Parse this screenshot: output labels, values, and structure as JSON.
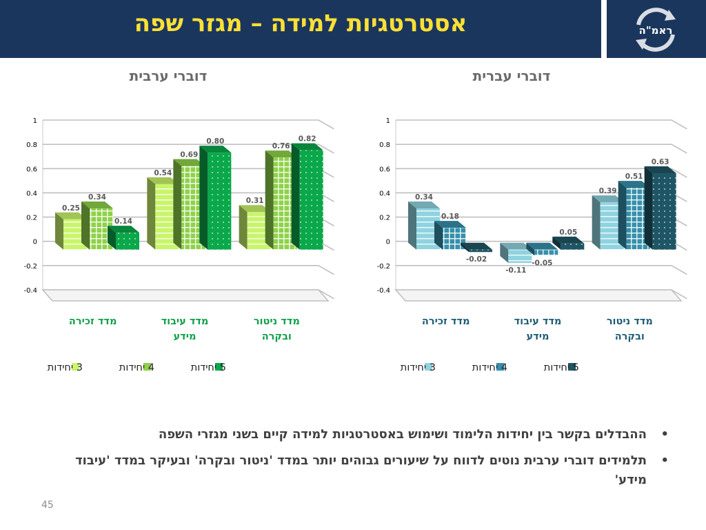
{
  "slide": {
    "title": "אסטרטגיות למידה – מגזר שפה",
    "logo_text": "ראמ\"ה",
    "page_number": "45",
    "bullets": [
      "ההבדלים בקשר בין יחידות הלימוד ושימוש באסטרטגיות למידה קיים בשני מגזרי השפה",
      "תלמידים דוברי ערבית נוטים לדווח על שיעורים גבוהים יותר במדד 'ניטור ובקרה' ובעיקר במדד 'עיבוד מידע'"
    ]
  },
  "colors": {
    "header_bg": "#1b365d",
    "title": "#ffe034",
    "arabic_series": [
      "#c9f56a",
      "#8fd14a",
      "#0aa84a"
    ],
    "arabic_category_text": "#12a04a",
    "hebrew_series": [
      "#8fd3e0",
      "#3690ab",
      "#1f5665"
    ],
    "hebrew_category_text": "#1f5d75"
  },
  "chart_data": [
    {
      "type": "bar",
      "title": "דוברי ערבית",
      "categories": [
        [
          "מדד זכירה"
        ],
        [
          "מדד עיבוד",
          "מידע"
        ],
        [
          "מדד ניטור",
          "ובקרה"
        ]
      ],
      "series": [
        {
          "name": "3 יחידות",
          "values": [
            0.25,
            0.54,
            0.31
          ]
        },
        {
          "name": "4 יחידות",
          "values": [
            0.34,
            0.69,
            0.76
          ]
        },
        {
          "name": "5 יחידות",
          "values": [
            0.14,
            0.8,
            0.82
          ]
        }
      ],
      "data_labels": [
        [
          "0.25",
          "0.54",
          "0.31"
        ],
        [
          "0.34",
          "0.69",
          "0.76"
        ],
        [
          "0.14",
          "0.80",
          "0.82"
        ]
      ],
      "yticks": [
        "1",
        "0.8",
        "0.6",
        "0.4",
        "0.2",
        "0",
        "-0.2",
        "-0.4"
      ],
      "ylim": [
        -0.4,
        1
      ],
      "grid": true,
      "legend_position": "bottom"
    },
    {
      "type": "bar",
      "title": "דוברי עברית",
      "categories": [
        [
          "מדד זכירה"
        ],
        [
          "מדד עיבוד",
          "מידע"
        ],
        [
          "מדד ניטור",
          "ובקרה"
        ]
      ],
      "series": [
        {
          "name": "3 יחידות",
          "values": [
            0.34,
            -0.11,
            0.39
          ]
        },
        {
          "name": "4 יחידות",
          "values": [
            0.18,
            -0.05,
            0.51
          ]
        },
        {
          "name": "5 יחידות",
          "values": [
            -0.02,
            0.05,
            0.63
          ]
        }
      ],
      "data_labels": [
        [
          "0.34",
          "-0.11",
          "0.39"
        ],
        [
          "0.18",
          "-0.05",
          "0.51"
        ],
        [
          "-0.02",
          "0.05",
          "0.63"
        ]
      ],
      "yticks": [
        "1",
        "0.8",
        "0.6",
        "0.4",
        "0.2",
        "0",
        "-0.2",
        "-0.4"
      ],
      "ylim": [
        -0.4,
        1
      ],
      "grid": true,
      "legend_position": "bottom"
    }
  ]
}
